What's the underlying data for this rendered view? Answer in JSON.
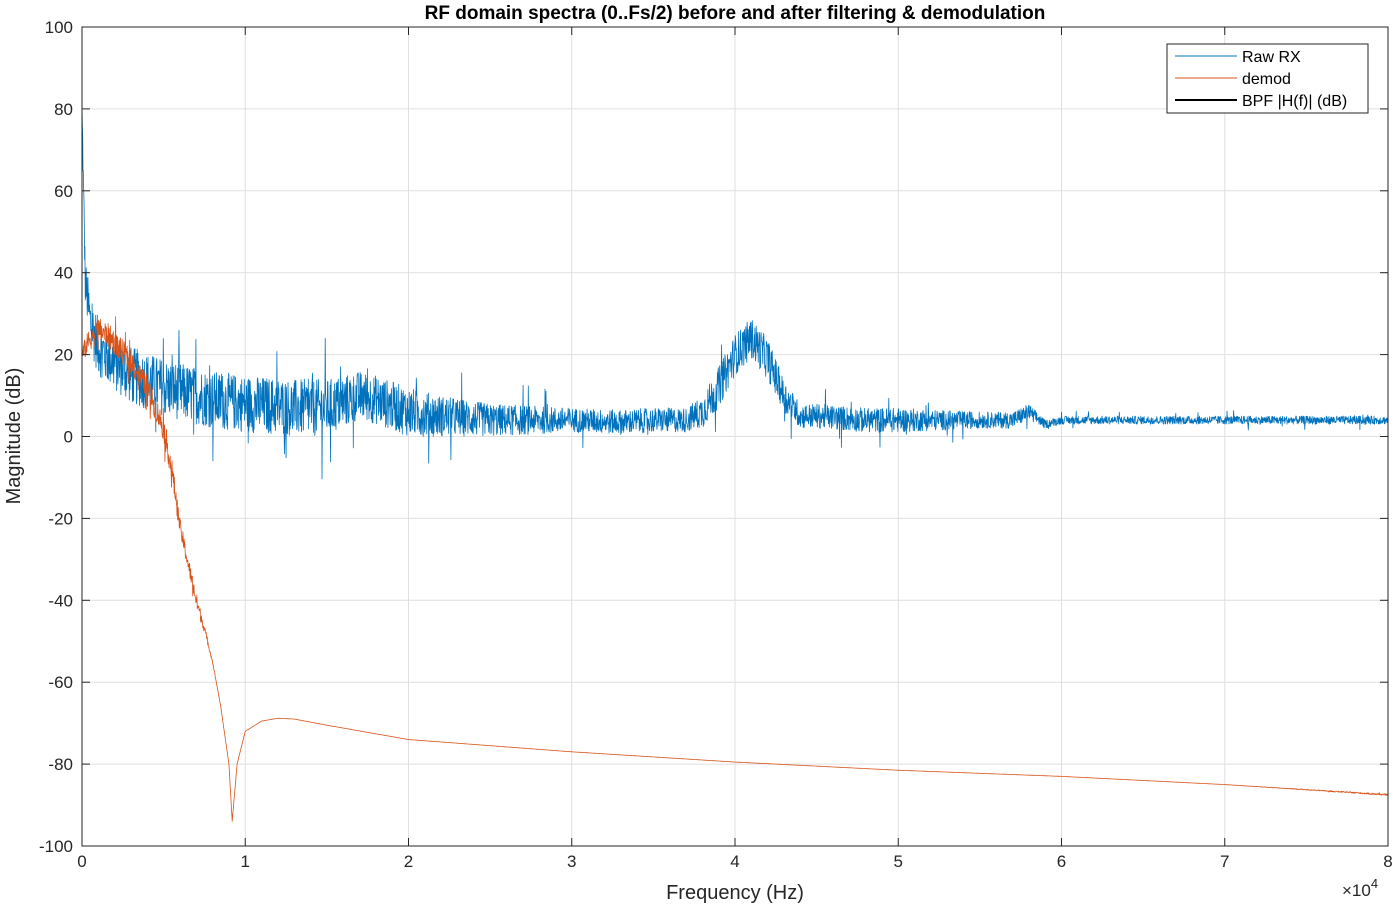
{
  "chart_data": {
    "type": "line",
    "title": "RF domain spectra (0..Fs/2) before and after filtering & demodulation",
    "xlabel": "Frequency (Hz)",
    "ylabel": "Magnitude (dB)",
    "x_exponent_label": "×10",
    "x_exponent_power": "4",
    "xlim": [
      0,
      80000
    ],
    "ylim": [
      -100,
      100
    ],
    "xticks": [
      0,
      10000,
      20000,
      30000,
      40000,
      50000,
      60000,
      70000,
      80000
    ],
    "xtick_labels": [
      "0",
      "1",
      "2",
      "3",
      "4",
      "5",
      "6",
      "7",
      "8"
    ],
    "yticks": [
      -100,
      -80,
      -60,
      -40,
      -20,
      0,
      20,
      40,
      60,
      80,
      100
    ],
    "ytick_labels": [
      "-100",
      "-80",
      "-60",
      "-40",
      "-20",
      "0",
      "20",
      "40",
      "60",
      "80",
      "100"
    ],
    "grid": true,
    "legend_position": "top-right",
    "legend": [
      "Raw RX",
      "demod",
      "BPF |H(f)| (dB)"
    ],
    "series": [
      {
        "name": "Raw RX",
        "color": "#0072bd",
        "noisy": true,
        "x": [
          0,
          200,
          500,
          1000,
          2000,
          3000,
          5000,
          8000,
          10000,
          13000,
          15000,
          17000,
          18000,
          20000,
          22000,
          25000,
          30000,
          33000,
          35000,
          37000,
          38000,
          39000,
          40000,
          41000,
          42000,
          43000,
          44000,
          45000,
          48000,
          50000,
          55000,
          57000,
          58000,
          59000,
          60000,
          65000,
          70000,
          75000,
          80000
        ],
        "values": [
          80,
          38,
          28,
          22,
          18,
          15,
          12,
          9,
          8,
          7,
          7,
          10,
          9,
          6,
          5,
          4,
          4,
          3.5,
          4,
          4,
          6,
          12,
          20,
          24,
          19,
          10,
          5,
          5,
          4,
          4,
          4,
          4,
          6,
          3,
          4,
          4,
          4,
          4,
          4
        ],
        "noise_amp": [
          3,
          6,
          7,
          7,
          7,
          7,
          7,
          7,
          7,
          7,
          7,
          6,
          6,
          6,
          5,
          4,
          3,
          3,
          3,
          3,
          4,
          5,
          5,
          5,
          5,
          4,
          3,
          3,
          3,
          3,
          2,
          2,
          2,
          1,
          1,
          1,
          1,
          1,
          1
        ]
      },
      {
        "name": "demod",
        "color": "#d95319",
        "noisy": true,
        "x": [
          0,
          500,
          1000,
          1500,
          2000,
          3000,
          4000,
          5000,
          5500,
          6000,
          7000,
          7500,
          8000,
          8500,
          9000,
          9200,
          9500,
          10000,
          11000,
          12000,
          13000,
          15000,
          20000,
          30000,
          40000,
          50000,
          60000,
          70000,
          80000
        ],
        "values": [
          20,
          24,
          26,
          25,
          23,
          18,
          12,
          2,
          -8,
          -22,
          -40,
          -47,
          -55,
          -66,
          -80,
          -94,
          -80,
          -72,
          -69.5,
          -68.8,
          -69,
          -70.5,
          -74,
          -77,
          -79.5,
          -81.5,
          -83,
          -85,
          -87.5
        ],
        "noise_amp": [
          2,
          3,
          3,
          3,
          3,
          3,
          3,
          3,
          3,
          2,
          2,
          1,
          0.3,
          0,
          0,
          0,
          0,
          0,
          0,
          0,
          0,
          0,
          0,
          0,
          0,
          0,
          0,
          0,
          0.2
        ]
      },
      {
        "name": "BPF |H(f)| (dB)",
        "color": "#000000",
        "noisy": false,
        "x": [],
        "values": [],
        "noise_amp": []
      }
    ]
  }
}
